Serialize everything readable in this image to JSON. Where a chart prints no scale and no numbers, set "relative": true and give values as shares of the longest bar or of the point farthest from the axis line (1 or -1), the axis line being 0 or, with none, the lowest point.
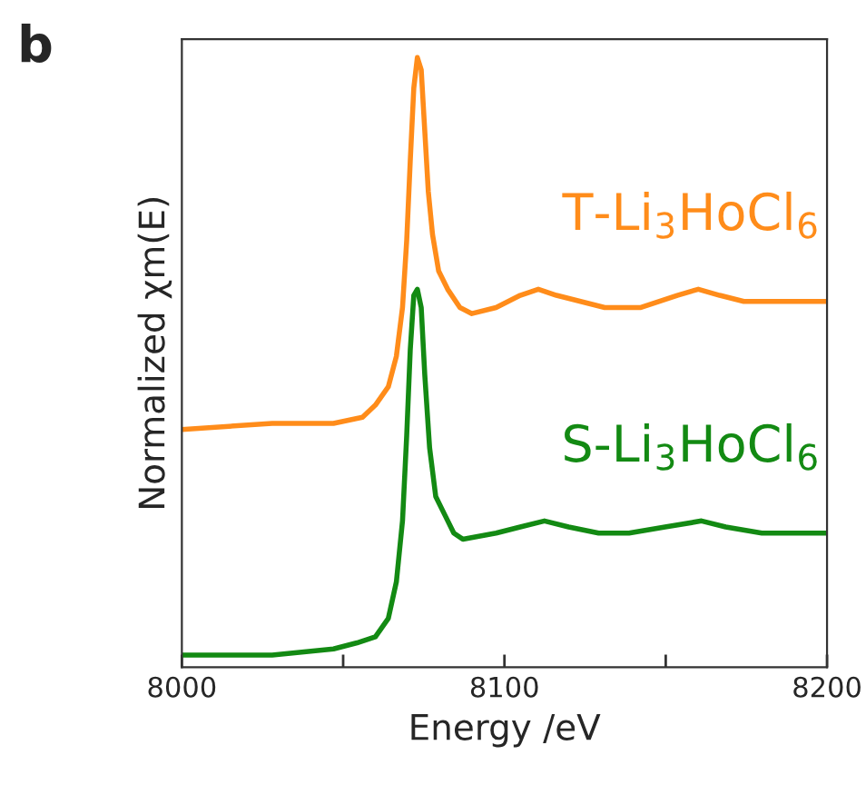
{
  "chart_data": {
    "type": "line",
    "relative": true,
    "xlabel": "Energy /eV",
    "ylabel": "Normalized χm(E)",
    "annotations": [
      "b"
    ],
    "xlim": [
      8000,
      8200
    ],
    "xticks": [
      8000,
      {
        "value": 8050,
        "label": null
      },
      8100,
      {
        "value": 8150,
        "label": null
      },
      8200
    ],
    "grid": false,
    "legend": false,
    "marker": "none",
    "line_style": "solid",
    "series": [
      {
        "name": "T-Li$_{3}$HoCl$_{6}$",
        "color": "#ff8c1a",
        "x": [
          8000,
          8028,
          8047,
          8056,
          8060,
          8064,
          8066.5,
          8068.4,
          8069.7,
          8070.8,
          8071.9,
          8073,
          8074.2,
          8075.3,
          8076.4,
          8077.7,
          8079.6,
          8082.4,
          8086.2,
          8089.9,
          8097.4,
          8104.9,
          8110.5,
          8116.1,
          8123.6,
          8131.1,
          8142.3,
          8153.6,
          8160.1,
          8166.7,
          8174.2,
          8181.7,
          8200
        ],
        "values": [
          0.39,
          0.4,
          0.4,
          0.41,
          0.43,
          0.46,
          0.51,
          0.59,
          0.7,
          0.83,
          0.95,
          1.0,
          0.98,
          0.88,
          0.78,
          0.71,
          0.65,
          0.62,
          0.59,
          0.58,
          0.59,
          0.61,
          0.62,
          0.61,
          0.6,
          0.59,
          0.59,
          0.61,
          0.62,
          0.61,
          0.6,
          0.6,
          0.6
        ]
      },
      {
        "name": "S-Li$_{3}$HoCl$_{6}$",
        "color": "#138a13",
        "x": [
          8000,
          8028,
          8047,
          8054.3,
          8060,
          8064,
          8066.5,
          8068.4,
          8069.7,
          8070.8,
          8071.9,
          8073,
          8074.2,
          8075.3,
          8076.8,
          8078.7,
          8081.5,
          8084.3,
          8087.1,
          8097.4,
          8104.9,
          8112.4,
          8119.9,
          8129.2,
          8138.6,
          8149.8,
          8161.1,
          8168.6,
          8179.8,
          8200
        ],
        "values": [
          0.02,
          0.02,
          0.03,
          0.04,
          0.05,
          0.08,
          0.14,
          0.24,
          0.38,
          0.52,
          0.61,
          0.62,
          0.59,
          0.48,
          0.36,
          0.28,
          0.25,
          0.22,
          0.21,
          0.22,
          0.23,
          0.24,
          0.23,
          0.22,
          0.22,
          0.23,
          0.24,
          0.23,
          0.22,
          0.22
        ]
      }
    ]
  }
}
